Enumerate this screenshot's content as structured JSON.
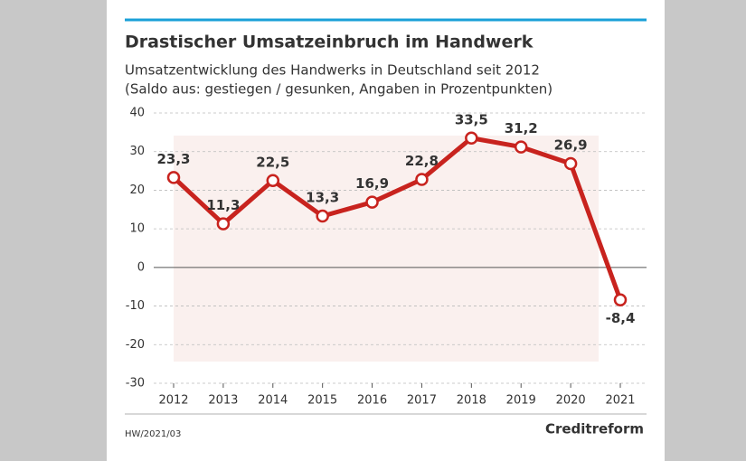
{
  "chart_data": {
    "type": "line",
    "title": "Drastischer Umsatzeinbruch im Handwerk",
    "subtitle": [
      "Umsatzentwicklung des Handwerks in Deutschland seit 2012",
      "(Saldo aus: gestiegen / gesunken, Angaben in Prozentpunkten)"
    ],
    "categories": [
      "2012",
      "2013",
      "2014",
      "2015",
      "2016",
      "2017",
      "2018",
      "2019",
      "2020",
      "2021"
    ],
    "series": [
      {
        "color": "#c8231e",
        "values": [
          23.3,
          11.3,
          22.5,
          13.3,
          16.9,
          22.8,
          33.5,
          31.2,
          26.9,
          -8.4
        ],
        "value_labels": [
          "23,3",
          "11,3",
          "22,5",
          "13,3",
          "16,9",
          "22,8",
          "33,5",
          "31,2",
          "26,9",
          "-8,4"
        ]
      }
    ],
    "ylim": [
      -30,
      40
    ],
    "yticks": [
      -30,
      -20,
      -10,
      0,
      10,
      20,
      30,
      40
    ],
    "grid": true,
    "source": "HW/2021/03",
    "logo": "Creditreform"
  }
}
